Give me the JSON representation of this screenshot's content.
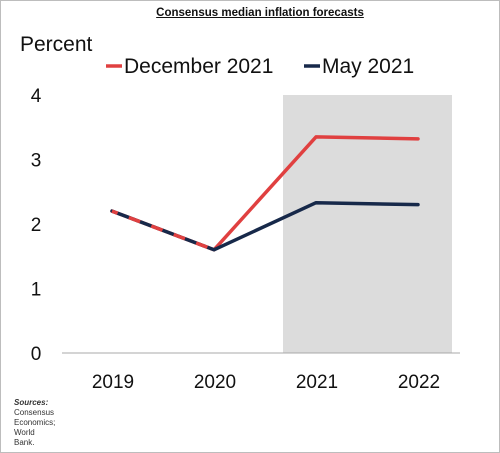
{
  "chart_data": {
    "type": "line",
    "title": "Consensus median inflation forecasts",
    "ylabel": "Percent",
    "categories": [
      "2019",
      "2020",
      "2021",
      "2022"
    ],
    "ylim": [
      0,
      4
    ],
    "yticks": [
      "0",
      "1",
      "2",
      "3",
      "4"
    ],
    "shaded_categories": [
      "2021",
      "2022"
    ],
    "series": [
      {
        "name": "December 2021",
        "color": "#e04040",
        "values": [
          2.2,
          1.6,
          3.35,
          3.32
        ]
      },
      {
        "name": "May 2021",
        "color": "#17294a",
        "values": [
          2.2,
          1.6,
          2.33,
          2.3
        ]
      }
    ],
    "legend_position": "top",
    "grid": false
  },
  "sources": {
    "heading": "Sources:",
    "lines": [
      "Consensus",
      "Economics;",
      "World",
      "Bank."
    ]
  }
}
